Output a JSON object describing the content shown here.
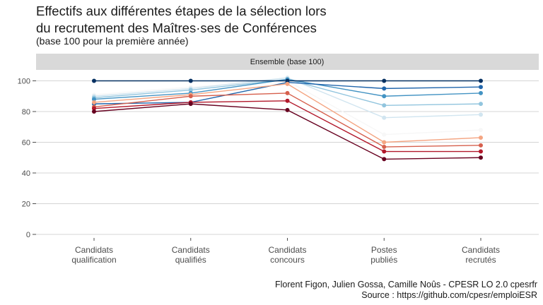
{
  "title_line1": "Effectifs aux différentes étapes de la sélection lors",
  "title_line2": "du recrutement des Maîtres·ses de Conférences",
  "subtitle": "(base 100 pour la première année)",
  "caption_line1": "Florent Figon, Julien Gossa, Camille Noûs - CPESR LO 2.0 cpesrfr",
  "caption_line2": "Source : https://github.com/cpesr/emploiESR",
  "chart_data": {
    "type": "line",
    "facet_label": "Ensemble (base 100)",
    "categories": [
      [
        "Candidats",
        "qualification"
      ],
      [
        "Candidats",
        "qualifiés"
      ],
      [
        "Candidats",
        "concours"
      ],
      [
        "Postes",
        "publiés"
      ],
      [
        "Candidats",
        "recrutés"
      ]
    ],
    "ylim": [
      0,
      110
    ],
    "yticks": [
      0,
      20,
      40,
      60,
      80,
      100
    ],
    "grid": true,
    "legend": "none",
    "series": [
      {
        "name": "s1",
        "color": "#f7f7f7",
        "values": [
          91,
          96,
          100,
          65,
          68
        ]
      },
      {
        "name": "s2",
        "color": "#d1e5f0",
        "values": [
          90,
          95,
          102,
          76,
          78
        ]
      },
      {
        "name": "s3",
        "color": "#92c5de",
        "values": [
          89,
          94,
          101,
          84,
          85
        ]
      },
      {
        "name": "s4",
        "color": "#4393c3",
        "values": [
          88,
          92,
          101,
          90,
          92
        ]
      },
      {
        "name": "s5",
        "color": "#2166ac",
        "values": [
          85,
          86,
          99,
          95,
          96
        ]
      },
      {
        "name": "s6",
        "color": "#053061",
        "values": [
          100,
          100,
          100,
          100,
          100
        ]
      },
      {
        "name": "s7",
        "color": "#f4a582",
        "values": [
          86,
          91,
          98,
          60,
          63
        ]
      },
      {
        "name": "s8",
        "color": "#d6604d",
        "values": [
          83,
          90,
          92,
          57,
          58
        ]
      },
      {
        "name": "s9",
        "color": "#b2182b",
        "values": [
          82,
          86,
          87,
          54,
          54
        ]
      },
      {
        "name": "s10",
        "color": "#67001f",
        "values": [
          80,
          85,
          81,
          49,
          50
        ]
      }
    ]
  }
}
